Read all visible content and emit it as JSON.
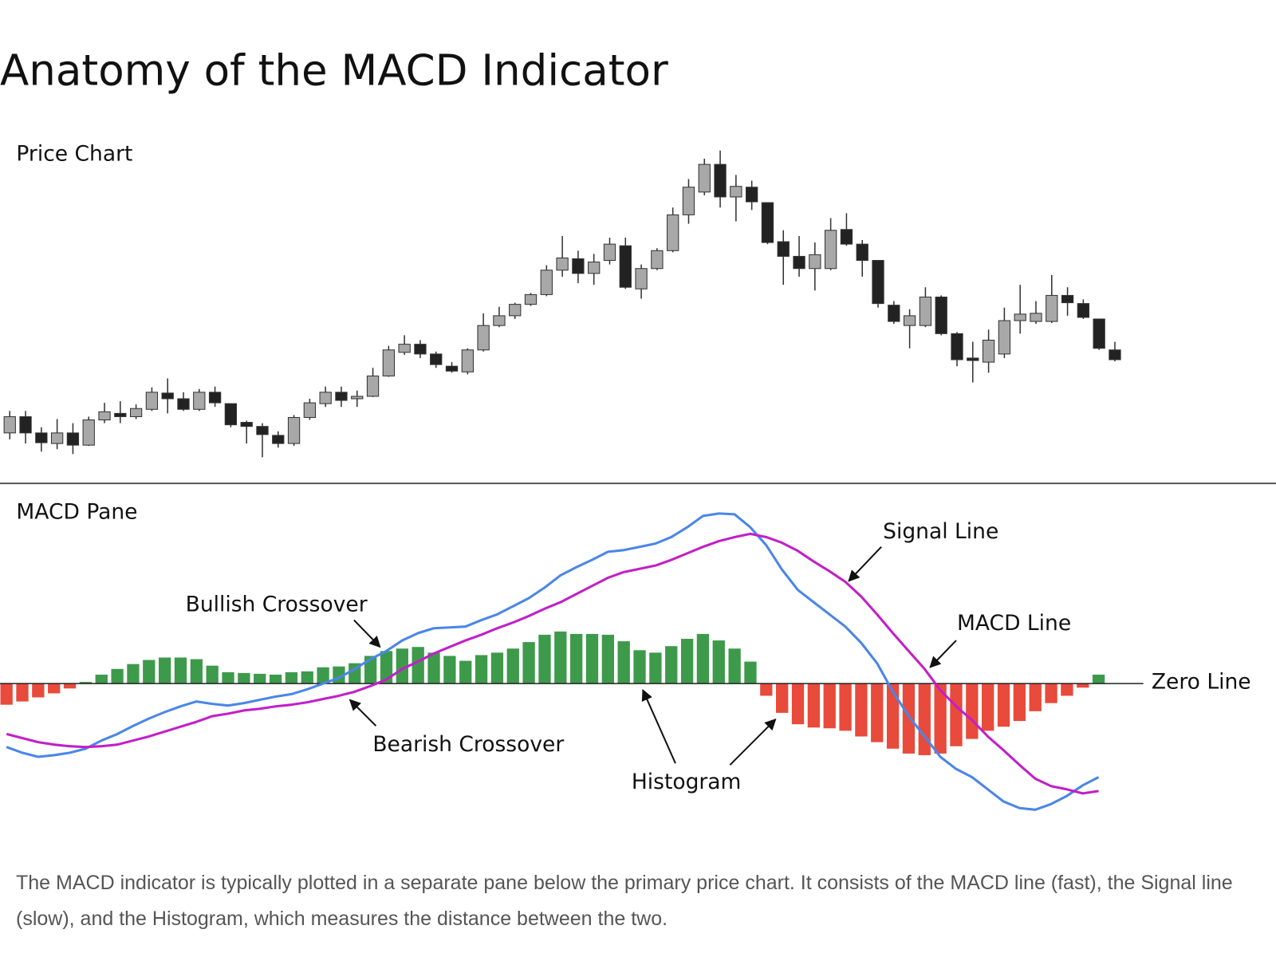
{
  "title": "Anatomy of the MACD Indicator",
  "caption": "The MACD indicator is typically plotted in a separate pane below the primary price chart. It consists of the MACD line (fast), the Signal line (slow), and the Histogram, which measures the distance between the two.",
  "chart_data": [
    {
      "type": "candlestick",
      "title": "Price Chart",
      "open": [
        68,
        88,
        68,
        55,
        68,
        53,
        84,
        92,
        88,
        97,
        117,
        110,
        97,
        118,
        104,
        81,
        76,
        65,
        55,
        87,
        104,
        118,
        110,
        113,
        138,
        167,
        177,
        165,
        150,
        143,
        170,
        200,
        212,
        226,
        238,
        268,
        282,
        264,
        280,
        298,
        245,
        270,
        292,
        336,
        364,
        398,
        358,
        370,
        351,
        303,
        285,
        270,
        270,
        318,
        300,
        280,
        225,
        200,
        200,
        235,
        190,
        160,
        155,
        165,
        206,
        205,
        205,
        237,
        227,
        208,
        170
      ],
      "high": [
        95,
        95,
        75,
        85,
        80,
        88,
        105,
        107,
        103,
        124,
        135,
        118,
        122,
        125,
        104,
        83,
        80,
        70,
        90,
        110,
        125,
        125,
        120,
        148,
        175,
        188,
        182,
        168,
        155,
        172,
        215,
        223,
        228,
        240,
        274,
        310,
        292,
        288,
        308,
        308,
        275,
        295,
        345,
        380,
        405,
        415,
        385,
        378,
        351,
        317,
        310,
        302,
        332,
        338,
        305,
        280,
        230,
        220,
        247,
        237,
        192,
        180,
        195,
        222,
        250,
        230,
        262,
        247,
        232,
        208,
        180
      ],
      "low": [
        60,
        55,
        45,
        48,
        42,
        52,
        80,
        80,
        85,
        95,
        92,
        95,
        95,
        100,
        75,
        55,
        38,
        50,
        52,
        84,
        100,
        100,
        100,
        112,
        137,
        164,
        160,
        148,
        142,
        140,
        168,
        198,
        208,
        224,
        236,
        260,
        252,
        250,
        275,
        245,
        233,
        268,
        290,
        325,
        360,
        345,
        328,
        342,
        300,
        250,
        260,
        243,
        268,
        298,
        260,
        222,
        202,
        172,
        198,
        188,
        150,
        130,
        142,
        160,
        190,
        202,
        203,
        212,
        208,
        170,
        156
      ],
      "close": [
        88,
        68,
        56,
        68,
        53,
        84,
        94,
        88,
        98,
        118,
        110,
        97,
        118,
        105,
        78,
        76,
        66,
        55,
        87,
        105,
        118,
        108,
        113,
        138,
        170,
        177,
        165,
        152,
        144,
        170,
        200,
        212,
        226,
        238,
        268,
        283,
        264,
        278,
        300,
        247,
        270,
        292,
        336,
        370,
        398,
        358,
        371,
        352,
        302,
        285,
        270,
        287,
        317,
        300,
        280,
        227,
        205,
        212,
        235,
        190,
        158,
        157,
        182,
        206,
        214,
        215,
        237,
        228,
        210,
        172,
        158
      ],
      "up_color": "#a8a8a8",
      "down_color": "#222222",
      "ylim": [
        0,
        420
      ]
    },
    {
      "type": "macd",
      "title": "MACD Pane",
      "ylim": [
        -200,
        200
      ],
      "series": [
        {
          "name": "MACD Line",
          "color": "#4a86e8",
          "values": [
            -78,
            -85,
            -90,
            -88,
            -85,
            -80,
            -70,
            -62,
            -52,
            -43,
            -35,
            -28,
            -22,
            -25,
            -27,
            -24,
            -20,
            -16,
            -13,
            -7,
            0,
            7,
            18,
            30,
            40,
            53,
            62,
            68,
            69,
            70,
            78,
            85,
            95,
            105,
            118,
            133,
            143,
            152,
            162,
            164,
            168,
            172,
            180,
            192,
            206,
            209,
            208,
            192,
            170,
            140,
            115,
            100,
            85,
            70,
            50,
            25,
            -10,
            -40,
            -65,
            -90,
            -105,
            -115,
            -130,
            -145,
            -153,
            -155,
            -148,
            -138,
            -125,
            -115
          ]
        },
        {
          "name": "Signal Line",
          "color": "#c21fc8",
          "values": [
            -62,
            -67,
            -72,
            -75,
            -77,
            -78,
            -77,
            -75,
            -70,
            -65,
            -59,
            -53,
            -47,
            -40,
            -37,
            -33,
            -31,
            -28,
            -26,
            -23,
            -19,
            -15,
            -10,
            -3,
            5,
            18,
            27,
            37,
            45,
            53,
            60,
            68,
            75,
            83,
            92,
            100,
            110,
            120,
            130,
            137,
            141,
            145,
            152,
            160,
            168,
            175,
            180,
            184,
            180,
            173,
            163,
            150,
            138,
            125,
            107,
            85,
            62,
            40,
            18,
            -8,
            -28,
            -45,
            -65,
            -82,
            -100,
            -117,
            -126,
            -130,
            -135,
            -132
          ]
        }
      ],
      "histogram": {
        "name": "Histogram",
        "up_color": "#3d9a4b",
        "down_color": "#e84a3b",
        "values": [
          -26,
          -22,
          -17,
          -12,
          -6,
          2,
          11,
          18,
          24,
          29,
          32,
          32,
          30,
          22,
          14,
          13,
          12,
          11,
          14,
          15,
          20,
          21,
          25,
          34,
          40,
          43,
          45,
          38,
          34,
          28,
          35,
          38,
          43,
          51,
          60,
          64,
          61,
          61,
          60,
          52,
          41,
          38,
          46,
          55,
          61,
          53,
          43,
          27,
          -15,
          -36,
          -50,
          -54,
          -55,
          -58,
          -65,
          -72,
          -80,
          -86,
          -88,
          -86,
          -77,
          -68,
          -58,
          -53,
          -46,
          -34,
          -24,
          -15,
          -5,
          11
        ]
      },
      "zero_line": {
        "label": "Zero Line",
        "value": 0
      },
      "annotations": [
        {
          "text": "Bullish Crossover"
        },
        {
          "text": "Bearish Crossover"
        }
      ]
    }
  ]
}
